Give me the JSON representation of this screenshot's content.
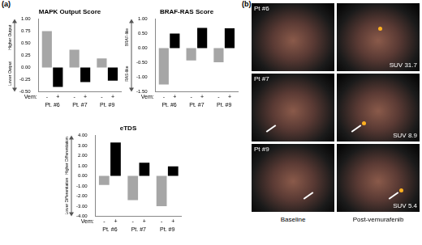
{
  "panel_labels": [
    "(a)",
    "(b)"
  ],
  "chart_data": [
    {
      "type": "bar",
      "title": "MAPK Output Score",
      "ylabel_low": "Lower Output",
      "ylabel_high": "Higher Output",
      "xlabel": "Vem:",
      "categories": [
        "Pt. #6",
        "Pt. #7",
        "Pt. #9"
      ],
      "series": [
        {
          "name": "-",
          "color": "#a6a6a6",
          "values": [
            0.75,
            0.37,
            0.19
          ]
        },
        {
          "name": "+",
          "color": "#000000",
          "values": [
            -0.4,
            -0.3,
            -0.27
          ]
        }
      ],
      "ylim": [
        -0.5,
        1.0
      ],
      "yticks": [
        {
          "value": -0.5,
          "label": "-0.50"
        },
        {
          "value": -0.25,
          "label": "-0.25"
        },
        {
          "value": 0,
          "label": "0.00"
        },
        {
          "value": 0.25,
          "label": "0.25"
        },
        {
          "value": 0.5,
          "label": "0.50"
        },
        {
          "value": 0.75,
          "label": "0.75"
        },
        {
          "value": 1.0,
          "label": "1.00"
        }
      ],
      "grid": false
    },
    {
      "type": "bar",
      "title": "BRAF-RAS Score",
      "ylabel_low": "RAS-like",
      "ylabel_high": "BRAF-like",
      "xlabel": "Vem:",
      "categories": [
        "Pt. #6",
        "Pt. #7",
        "Pt. #9"
      ],
      "series": [
        {
          "name": "-",
          "color": "#a6a6a6",
          "values": [
            -1.25,
            -0.42,
            -0.48
          ]
        },
        {
          "name": "+",
          "color": "#000000",
          "values": [
            0.5,
            0.7,
            0.68
          ]
        }
      ],
      "ylim": [
        -1.5,
        1.0
      ],
      "yticks": [
        {
          "value": -1.5,
          "label": "-1.50"
        },
        {
          "value": -1.0,
          "label": "-1.00"
        },
        {
          "value": -0.5,
          "label": "-0.50"
        },
        {
          "value": 0,
          "label": "0.00"
        },
        {
          "value": 0.5,
          "label": "0.50"
        },
        {
          "value": 1.0,
          "label": "1.00"
        }
      ],
      "grid": false
    },
    {
      "type": "bar",
      "title": "eTDS",
      "ylabel_low": "Lower Differentiation",
      "ylabel_high": "Higher Differentiation",
      "xlabel": "Vem:",
      "categories": [
        "Pt. #6",
        "Pt. #7",
        "Pt. #9"
      ],
      "series": [
        {
          "name": "-",
          "color": "#a6a6a6",
          "values": [
            -0.9,
            -2.4,
            -3.0
          ]
        },
        {
          "name": "+",
          "color": "#000000",
          "values": [
            3.3,
            1.3,
            0.95
          ]
        }
      ],
      "ylim": [
        -4.0,
        4.0
      ],
      "yticks": [
        {
          "value": -4,
          "label": "-4.00"
        },
        {
          "value": -3,
          "label": "-3.00"
        },
        {
          "value": -2,
          "label": "-2.00"
        },
        {
          "value": -1,
          "label": "-1.00"
        },
        {
          "value": 0,
          "label": "0.00"
        },
        {
          "value": 1,
          "label": "1.00"
        },
        {
          "value": 2,
          "label": "2.00"
        },
        {
          "value": 3,
          "label": "3.00"
        },
        {
          "value": 4,
          "label": "4.00"
        }
      ],
      "grid": false
    }
  ],
  "images": {
    "columns": [
      "Baseline",
      "Post-vemurafenib"
    ],
    "rows": [
      {
        "label": "Pt #6",
        "annotation": "SUV 31.7"
      },
      {
        "label": "Pt #7",
        "annotation": "SUV 8.9"
      },
      {
        "label": "Pt #9",
        "annotation": "SUV 5.4"
      }
    ]
  }
}
